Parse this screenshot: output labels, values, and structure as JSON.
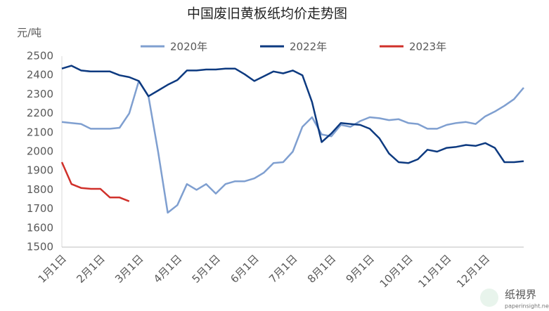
{
  "chart_data": {
    "type": "line",
    "title": "中国废旧黄板纸均价走势图",
    "y_label": "元/吨",
    "categories": [
      "1月1日",
      null,
      null,
      null,
      "2月1日",
      null,
      null,
      null,
      "3月1日",
      null,
      null,
      null,
      "4月1日",
      null,
      null,
      null,
      "5月1日",
      null,
      null,
      null,
      "6月1日",
      null,
      null,
      null,
      "7月1日",
      null,
      null,
      null,
      "8月1日",
      null,
      null,
      null,
      "9月1日",
      null,
      null,
      null,
      "10月1日",
      null,
      null,
      null,
      "11月1日",
      null,
      null,
      null,
      "12月1日",
      null,
      null,
      null,
      null
    ],
    "series": [
      {
        "name": "2020年",
        "color": "#7f9fd0",
        "values": [
          2155,
          2150,
          2145,
          2120,
          2120,
          2120,
          2125,
          2200,
          2370,
          2290,
          2000,
          1680,
          1720,
          1830,
          1800,
          1830,
          1780,
          1830,
          1845,
          1845,
          1860,
          1890,
          1940,
          1945,
          2000,
          2130,
          2180,
          2090,
          2080,
          2140,
          2130,
          2160,
          2180,
          2175,
          2165,
          2170,
          2150,
          2145,
          2120,
          2120,
          2140,
          2150,
          2155,
          2145,
          2185,
          2210,
          2240,
          2275,
          2335
        ]
      },
      {
        "name": "2022年",
        "color": "#0d3a80",
        "values": [
          2435,
          2450,
          2425,
          2420,
          2420,
          2420,
          2400,
          2390,
          2370,
          2290,
          2320,
          2350,
          2375,
          2425,
          2425,
          2430,
          2430,
          2435,
          2435,
          2405,
          2370,
          2395,
          2420,
          2410,
          2425,
          2400,
          2260,
          2050,
          2095,
          2150,
          2145,
          2140,
          2120,
          2070,
          1990,
          1945,
          1940,
          1960,
          2010,
          2000,
          2020,
          2025,
          2035,
          2030,
          2045,
          2020,
          1945,
          1945,
          1950
        ]
      },
      {
        "name": "2023年",
        "color": "#d0302a",
        "values": [
          1945,
          1830,
          1810,
          1805,
          1805,
          1760,
          1760,
          1740,
          null,
          null,
          null,
          null,
          null,
          null,
          null,
          null,
          null,
          null,
          null,
          null,
          null,
          null,
          null,
          null,
          null,
          null,
          null,
          null,
          null,
          null,
          null,
          null,
          null,
          null,
          null,
          null,
          null,
          null,
          null,
          null,
          null,
          null,
          null,
          null,
          null,
          null,
          null,
          null,
          null
        ]
      }
    ],
    "ylim": [
      1500,
      2500
    ],
    "yticks": [
      1500,
      1600,
      1700,
      1800,
      1900,
      2000,
      2100,
      2200,
      2300,
      2400,
      2500
    ],
    "grid": false,
    "legend": "top",
    "watermark": {
      "name": "纸視界",
      "site": "paperinsight.net"
    }
  }
}
